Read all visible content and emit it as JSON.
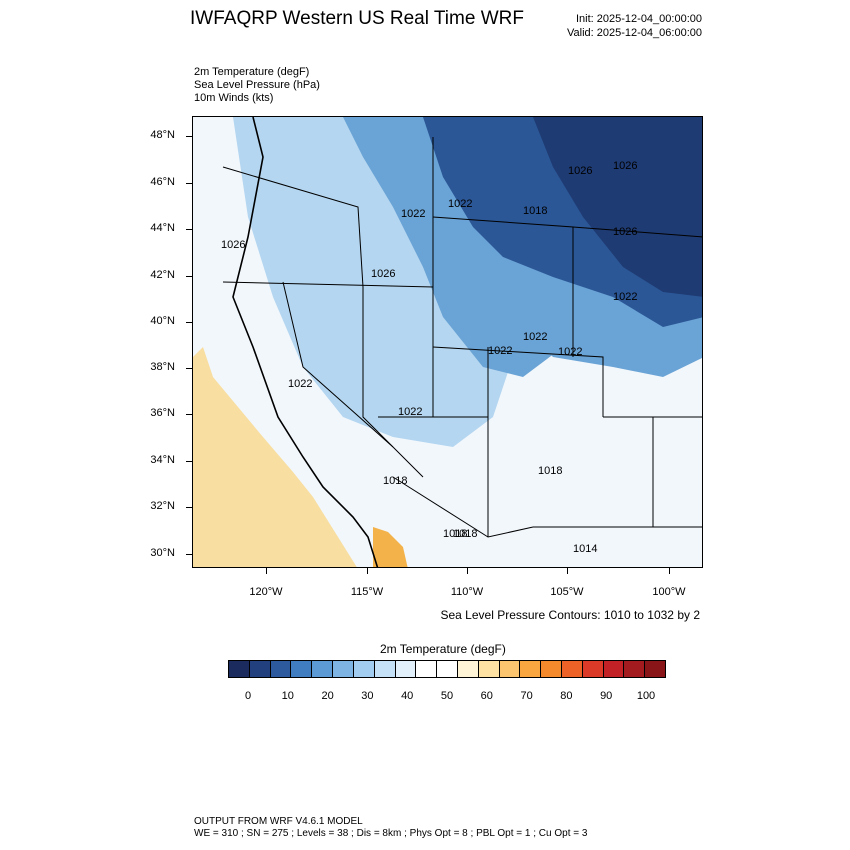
{
  "header": {
    "title": "IWFAQRP Western US Real Time WRF",
    "init": "Init: 2025-12-04_00:00:00",
    "valid": "Valid: 2025-12-04_06:00:00"
  },
  "fields": [
    "2m Temperature   (degF)",
    "Sea Level Pressure   (hPa)",
    "10m Winds   (kts)"
  ],
  "map": {
    "lat_labels": [
      "48°N",
      "46°N",
      "44°N",
      "42°N",
      "40°N",
      "38°N",
      "36°N",
      "34°N",
      "32°N",
      "30°N"
    ],
    "lon_labels": [
      "120°W",
      "115°W",
      "110°W",
      "105°W",
      "100°W"
    ],
    "pressure_labels": [
      "1026",
      "1026",
      "1022",
      "1022",
      "1018",
      "1026",
      "1026",
      "1026",
      "1022",
      "1022",
      "1022",
      "1022",
      "1022",
      "1022",
      "1018",
      "1018",
      "1018",
      "1014",
      "1018"
    ],
    "colors": {
      "deep_cold": "#1f3b73",
      "cold": "#2b5797",
      "cool": "#6aa3d5",
      "mild": "#b4d6f0",
      "neutral": "#f2f7fc",
      "warm": "#f8dea0",
      "hot": "#f4b24a",
      "background": "#ffffff"
    }
  },
  "contour_note": "Sea Level Pressure Contours: 1010 to 1032 by 2",
  "colorbar": {
    "title": "2m Temperature  (degF)",
    "colors": [
      "#1b2b5e",
      "#23407e",
      "#2d5a9e",
      "#3f7cc0",
      "#5b9ad4",
      "#7db4e3",
      "#a2cdf0",
      "#c4e1f7",
      "#e2f0fb",
      "#ffffff",
      "#ffffff",
      "#fff4d6",
      "#fde2a4",
      "#fbc56f",
      "#f9a641",
      "#f48a2b",
      "#ec6227",
      "#db3a28",
      "#c22125",
      "#a31b1e",
      "#8a1518"
    ],
    "tick_labels": [
      "0",
      "10",
      "20",
      "30",
      "40",
      "50",
      "60",
      "70",
      "80",
      "90",
      "100"
    ]
  },
  "footer": {
    "line1": "OUTPUT FROM WRF V4.6.1 MODEL",
    "line2": "WE = 310 ; SN = 275 ; Levels = 38 ; Dis = 8km ; Phys Opt = 8 ; PBL Opt = 1 ; Cu Opt = 3"
  }
}
